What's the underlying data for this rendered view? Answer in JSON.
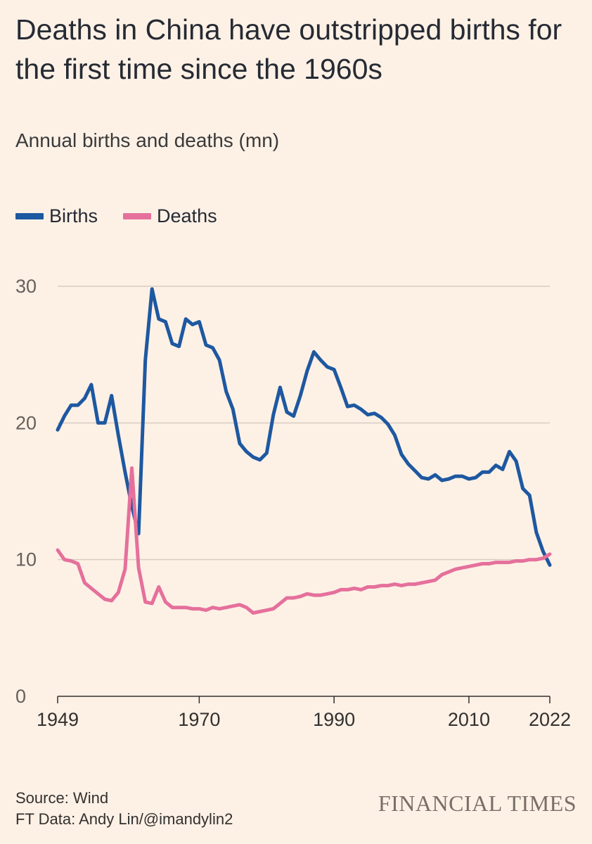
{
  "title": "Deaths in China have outstripped births for the first time since the 1960s",
  "subtitle": "Annual births and deaths (mn)",
  "legend": [
    {
      "name": "Births",
      "color": "#1e58a0"
    },
    {
      "name": "Deaths",
      "color": "#e5709b"
    }
  ],
  "footer": {
    "source": "Source: Wind",
    "credit": "FT Data: Andy Lin/@imandylin2",
    "brand": "FINANCIAL TIMES"
  },
  "chart_data": {
    "type": "line",
    "title": "Deaths in China have outstripped births for the first time since the 1960s",
    "ylabel": "Annual births and deaths (mn)",
    "xlabel": "",
    "xlim": [
      1949,
      2022
    ],
    "ylim": [
      0,
      30
    ],
    "yticks": [
      0,
      10,
      20,
      30
    ],
    "xticks": [
      1949,
      1970,
      1990,
      2010,
      2022
    ],
    "grid": true,
    "legend_position": "top-left",
    "series": [
      {
        "name": "Births",
        "color": "#1e58a0",
        "x": [
          1949,
          1950,
          1951,
          1952,
          1953,
          1954,
          1955,
          1956,
          1957,
          1958,
          1959,
          1960,
          1961,
          1962,
          1963,
          1964,
          1965,
          1966,
          1967,
          1968,
          1969,
          1970,
          1971,
          1972,
          1973,
          1974,
          1975,
          1976,
          1977,
          1978,
          1979,
          1980,
          1981,
          1982,
          1983,
          1984,
          1985,
          1986,
          1987,
          1988,
          1989,
          1990,
          1991,
          1992,
          1993,
          1994,
          1995,
          1996,
          1997,
          1998,
          1999,
          2000,
          2001,
          2002,
          2003,
          2004,
          2005,
          2006,
          2007,
          2008,
          2009,
          2010,
          2011,
          2012,
          2013,
          2014,
          2015,
          2016,
          2017,
          2018,
          2019,
          2020,
          2021,
          2022
        ],
        "values": [
          19.5,
          20.5,
          21.3,
          21.3,
          21.8,
          22.8,
          20.0,
          20.0,
          22.0,
          19.1,
          16.4,
          13.9,
          11.9,
          24.6,
          29.8,
          27.6,
          27.4,
          25.8,
          25.6,
          27.6,
          27.2,
          27.4,
          25.7,
          25.5,
          24.6,
          22.3,
          21.0,
          18.5,
          17.9,
          17.5,
          17.3,
          17.8,
          20.6,
          22.6,
          20.8,
          20.5,
          22.0,
          23.8,
          25.2,
          24.6,
          24.1,
          23.9,
          22.6,
          21.2,
          21.3,
          21.0,
          20.6,
          20.7,
          20.4,
          19.9,
          19.1,
          17.7,
          17.0,
          16.5,
          16.0,
          15.9,
          16.2,
          15.8,
          15.9,
          16.1,
          16.1,
          15.9,
          16.0,
          16.4,
          16.4,
          16.9,
          16.6,
          17.9,
          17.2,
          15.2,
          14.7,
          12.0,
          10.6,
          9.6
        ]
      },
      {
        "name": "Deaths",
        "color": "#e5709b",
        "x": [
          1949,
          1950,
          1951,
          1952,
          1953,
          1954,
          1955,
          1956,
          1957,
          1958,
          1959,
          1960,
          1961,
          1962,
          1963,
          1964,
          1965,
          1966,
          1967,
          1968,
          1969,
          1970,
          1971,
          1972,
          1973,
          1974,
          1975,
          1976,
          1977,
          1978,
          1979,
          1980,
          1981,
          1982,
          1983,
          1984,
          1985,
          1986,
          1987,
          1988,
          1989,
          1990,
          1991,
          1992,
          1993,
          1994,
          1995,
          1996,
          1997,
          1998,
          1999,
          2000,
          2001,
          2002,
          2003,
          2004,
          2005,
          2006,
          2007,
          2008,
          2009,
          2010,
          2011,
          2012,
          2013,
          2014,
          2015,
          2016,
          2017,
          2018,
          2019,
          2020,
          2021,
          2022
        ],
        "values": [
          10.7,
          10.0,
          9.9,
          9.7,
          8.3,
          7.9,
          7.5,
          7.1,
          7.0,
          7.6,
          9.3,
          16.7,
          9.4,
          6.9,
          6.8,
          8.0,
          6.9,
          6.5,
          6.5,
          6.5,
          6.4,
          6.4,
          6.3,
          6.5,
          6.4,
          6.5,
          6.6,
          6.7,
          6.5,
          6.1,
          6.2,
          6.3,
          6.4,
          6.8,
          7.2,
          7.2,
          7.3,
          7.5,
          7.4,
          7.4,
          7.5,
          7.6,
          7.8,
          7.8,
          7.9,
          7.8,
          8.0,
          8.0,
          8.1,
          8.1,
          8.2,
          8.1,
          8.2,
          8.2,
          8.3,
          8.4,
          8.5,
          8.9,
          9.1,
          9.3,
          9.4,
          9.5,
          9.6,
          9.7,
          9.7,
          9.8,
          9.8,
          9.8,
          9.9,
          9.9,
          10.0,
          10.0,
          10.1,
          10.4
        ]
      }
    ]
  }
}
